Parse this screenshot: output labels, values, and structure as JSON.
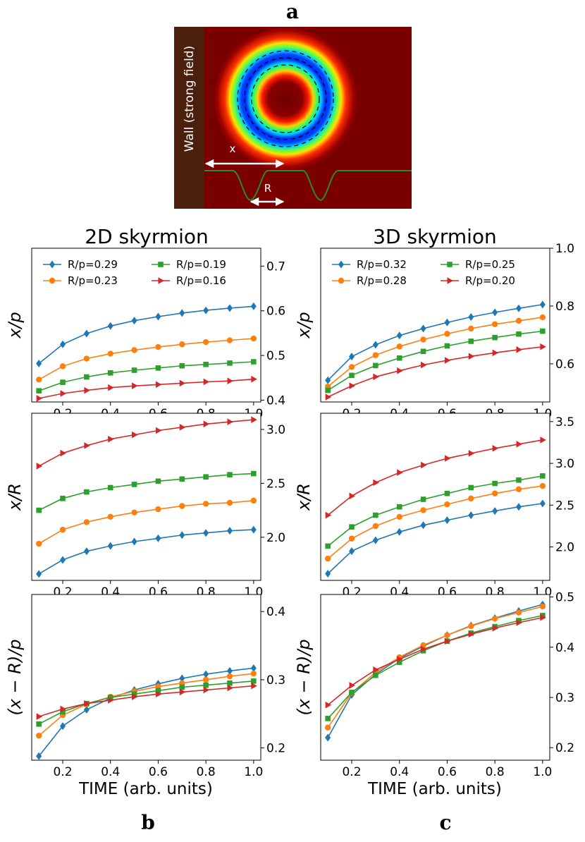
{
  "panel_labels": {
    "a": "a",
    "b": "b",
    "c": "c"
  },
  "panel_a": {
    "wall_label": "Wall (strong field)",
    "x_label": "x",
    "r_label": "R",
    "colors": {
      "wall": "#4a200c",
      "background": "#7a0000",
      "profile": "#2a8a2a",
      "arrow": "#ffffff"
    }
  },
  "column_titles": {
    "left": "2D skyrmion",
    "right": "3D skyrmion"
  },
  "xlabel": "TIME (arb. units)",
  "series_colors": [
    "#1f77b4",
    "#ff7f0e",
    "#2ca02c",
    "#d62728"
  ],
  "markers": [
    "diamond",
    "circle",
    "square",
    "triangle-right"
  ],
  "chart_data": [
    {
      "id": "2d-x-over-p",
      "type": "line",
      "column": "2D skyrmion",
      "ylabel": "x/p",
      "xlabel": "",
      "xlim": [
        0.07,
        1.03
      ],
      "ylim": [
        0.396,
        0.74
      ],
      "xticks": [
        0.2,
        0.4,
        0.6,
        0.8,
        1.0
      ],
      "xtick_labels": [
        "0.2",
        "0.4",
        "0.6",
        "0.8",
        "1.0"
      ],
      "yticks": [
        0.4,
        0.5,
        0.6,
        0.7
      ],
      "ytick_labels": [
        "0.4",
        "0.5",
        "0.6",
        "0.7"
      ],
      "legend": "top",
      "legend_cols": 2,
      "x": [
        0.1,
        0.2,
        0.3,
        0.4,
        0.5,
        0.6,
        0.7,
        0.8,
        0.9,
        1.0
      ],
      "series": [
        {
          "name": "R/p=0.29",
          "values": [
            0.482,
            0.525,
            0.549,
            0.566,
            0.578,
            0.587,
            0.595,
            0.601,
            0.606,
            0.61
          ]
        },
        {
          "name": "R/p=0.23",
          "values": [
            0.446,
            0.476,
            0.493,
            0.504,
            0.512,
            0.519,
            0.525,
            0.53,
            0.534,
            0.538
          ]
        },
        {
          "name": "R/p=0.19",
          "values": [
            0.421,
            0.44,
            0.452,
            0.461,
            0.467,
            0.472,
            0.477,
            0.48,
            0.483,
            0.486
          ]
        },
        {
          "name": "R/p=0.16",
          "values": [
            0.404,
            0.415,
            0.422,
            0.428,
            0.432,
            0.435,
            0.438,
            0.441,
            0.443,
            0.447
          ]
        }
      ]
    },
    {
      "id": "3d-x-over-p",
      "type": "line",
      "column": "3D skyrmion",
      "ylabel": "x/p",
      "xlabel": "",
      "xlim": [
        0.07,
        1.03
      ],
      "ylim": [
        0.468,
        1.0
      ],
      "xticks": [
        0.2,
        0.4,
        0.6,
        0.8,
        1.0
      ],
      "xtick_labels": [
        "0.2",
        "0.4",
        "0.6",
        "0.8",
        "1.0"
      ],
      "yticks": [
        0.6,
        0.8,
        1.0
      ],
      "ytick_labels": [
        "0.6",
        "0.8",
        "1.0"
      ],
      "legend": "top",
      "legend_cols": 2,
      "x": [
        0.1,
        0.2,
        0.3,
        0.4,
        0.5,
        0.6,
        0.7,
        0.8,
        0.9,
        1.0
      ],
      "series": [
        {
          "name": "R/p=0.32",
          "values": [
            0.543,
            0.625,
            0.666,
            0.698,
            0.722,
            0.743,
            0.762,
            0.778,
            0.792,
            0.805
          ]
        },
        {
          "name": "R/p=0.28",
          "values": [
            0.521,
            0.589,
            0.63,
            0.66,
            0.684,
            0.704,
            0.722,
            0.737,
            0.749,
            0.761
          ]
        },
        {
          "name": "R/p=0.25",
          "values": [
            0.508,
            0.56,
            0.594,
            0.62,
            0.643,
            0.662,
            0.678,
            0.691,
            0.703,
            0.713
          ]
        },
        {
          "name": "R/p=0.20",
          "values": [
            0.485,
            0.524,
            0.555,
            0.576,
            0.596,
            0.612,
            0.626,
            0.638,
            0.649,
            0.659
          ]
        }
      ]
    },
    {
      "id": "2d-x-over-R",
      "type": "line",
      "column": "2D skyrmion",
      "ylabel": "x/R",
      "xlabel": "",
      "xlim": [
        0.07,
        1.03
      ],
      "ylim": [
        1.6,
        3.15
      ],
      "xticks": [
        0.2,
        0.4,
        0.6,
        0.8,
        1.0
      ],
      "xtick_labels": [
        "0.2",
        "0.4",
        "0.6",
        "0.8",
        "1.0"
      ],
      "yticks": [
        2.0,
        2.5,
        3.0
      ],
      "ytick_labels": [
        "2.0",
        "2.5",
        "3.0"
      ],
      "x": [
        0.1,
        0.2,
        0.3,
        0.4,
        0.5,
        0.6,
        0.7,
        0.8,
        0.9,
        1.0
      ],
      "series": [
        {
          "name": "R/p=0.29",
          "values": [
            1.66,
            1.79,
            1.87,
            1.92,
            1.96,
            1.99,
            2.02,
            2.04,
            2.06,
            2.07
          ]
        },
        {
          "name": "R/p=0.23",
          "values": [
            1.94,
            2.07,
            2.14,
            2.19,
            2.23,
            2.26,
            2.29,
            2.31,
            2.32,
            2.34
          ]
        },
        {
          "name": "R/p=0.19",
          "values": [
            2.25,
            2.36,
            2.42,
            2.46,
            2.49,
            2.52,
            2.54,
            2.56,
            2.58,
            2.59
          ]
        },
        {
          "name": "R/p=0.16",
          "values": [
            2.66,
            2.78,
            2.85,
            2.91,
            2.95,
            2.99,
            3.02,
            3.05,
            3.07,
            3.09
          ]
        }
      ]
    },
    {
      "id": "3d-x-over-R",
      "type": "line",
      "column": "3D skyrmion",
      "ylabel": "x/R",
      "xlabel": "",
      "xlim": [
        0.07,
        1.03
      ],
      "ylim": [
        1.6,
        3.6
      ],
      "xticks": [
        0.2,
        0.4,
        0.6,
        0.8,
        1.0
      ],
      "xtick_labels": [
        "0.2",
        "0.4",
        "0.6",
        "0.8",
        "1.0"
      ],
      "yticks": [
        2.0,
        2.5,
        3.0,
        3.5
      ],
      "ytick_labels": [
        "2.0",
        "2.5",
        "3.0",
        "3.5"
      ],
      "x": [
        0.1,
        0.2,
        0.3,
        0.4,
        0.5,
        0.6,
        0.7,
        0.8,
        0.9,
        1.0
      ],
      "series": [
        {
          "name": "R/p=0.32",
          "values": [
            1.68,
            1.95,
            2.08,
            2.18,
            2.26,
            2.32,
            2.38,
            2.43,
            2.48,
            2.52
          ]
        },
        {
          "name": "R/p=0.28",
          "values": [
            1.86,
            2.1,
            2.25,
            2.36,
            2.44,
            2.51,
            2.58,
            2.64,
            2.69,
            2.73
          ]
        },
        {
          "name": "R/p=0.25",
          "values": [
            2.01,
            2.24,
            2.38,
            2.48,
            2.57,
            2.64,
            2.71,
            2.76,
            2.8,
            2.85
          ]
        },
        {
          "name": "R/p=0.20",
          "values": [
            2.38,
            2.61,
            2.77,
            2.89,
            2.98,
            3.06,
            3.12,
            3.18,
            3.23,
            3.28
          ]
        }
      ]
    },
    {
      "id": "2d-x-minus-R-over-p",
      "type": "line",
      "column": "2D skyrmion",
      "ylabel": "(x − R)/p",
      "xlabel": "TIME (arb. units)",
      "xlim": [
        0.07,
        1.03
      ],
      "ylim": [
        0.182,
        0.425
      ],
      "xticks": [
        0.2,
        0.4,
        0.6,
        0.8,
        1.0
      ],
      "xtick_labels": [
        "0.2",
        "0.4",
        "0.6",
        "0.8",
        "1.0"
      ],
      "yticks": [
        0.2,
        0.3,
        0.4
      ],
      "ytick_labels": [
        "0.2",
        "0.3",
        "0.4"
      ],
      "x": [
        0.1,
        0.2,
        0.3,
        0.4,
        0.5,
        0.6,
        0.7,
        0.8,
        0.9,
        1.0
      ],
      "series": [
        {
          "name": "R/p=0.29",
          "values": [
            0.188,
            0.232,
            0.256,
            0.273,
            0.285,
            0.294,
            0.302,
            0.308,
            0.313,
            0.317
          ]
        },
        {
          "name": "R/p=0.23",
          "values": [
            0.218,
            0.248,
            0.264,
            0.275,
            0.283,
            0.29,
            0.295,
            0.3,
            0.305,
            0.309
          ]
        },
        {
          "name": "R/p=0.19",
          "values": [
            0.235,
            0.253,
            0.265,
            0.274,
            0.279,
            0.284,
            0.289,
            0.292,
            0.295,
            0.298
          ]
        },
        {
          "name": "R/p=0.16",
          "values": [
            0.246,
            0.257,
            0.265,
            0.27,
            0.275,
            0.279,
            0.282,
            0.285,
            0.288,
            0.291
          ]
        }
      ]
    },
    {
      "id": "3d-x-minus-R-over-p",
      "type": "line",
      "column": "3D skyrmion",
      "ylabel": "(x − R)/p",
      "xlabel": "TIME (arb. units)",
      "xlim": [
        0.07,
        1.03
      ],
      "ylim": [
        0.175,
        0.505
      ],
      "xticks": [
        0.2,
        0.4,
        0.6,
        0.8,
        1.0
      ],
      "xtick_labels": [
        "0.2",
        "0.4",
        "0.6",
        "0.8",
        "1.0"
      ],
      "yticks": [
        0.2,
        0.3,
        0.4,
        0.5
      ],
      "ytick_labels": [
        "0.2",
        "0.3",
        "0.4",
        "0.5"
      ],
      "x": [
        0.1,
        0.2,
        0.3,
        0.4,
        0.5,
        0.6,
        0.7,
        0.8,
        0.9,
        1.0
      ],
      "series": [
        {
          "name": "R/p=0.32",
          "values": [
            0.22,
            0.305,
            0.346,
            0.378,
            0.402,
            0.424,
            0.443,
            0.458,
            0.472,
            0.485
          ]
        },
        {
          "name": "R/p=0.28",
          "values": [
            0.24,
            0.309,
            0.35,
            0.38,
            0.404,
            0.424,
            0.442,
            0.457,
            0.469,
            0.481
          ]
        },
        {
          "name": "R/p=0.25",
          "values": [
            0.258,
            0.31,
            0.344,
            0.37,
            0.393,
            0.412,
            0.428,
            0.441,
            0.453,
            0.463
          ]
        },
        {
          "name": "R/p=0.20",
          "values": [
            0.285,
            0.324,
            0.355,
            0.376,
            0.396,
            0.412,
            0.426,
            0.438,
            0.449,
            0.459
          ]
        }
      ]
    }
  ]
}
